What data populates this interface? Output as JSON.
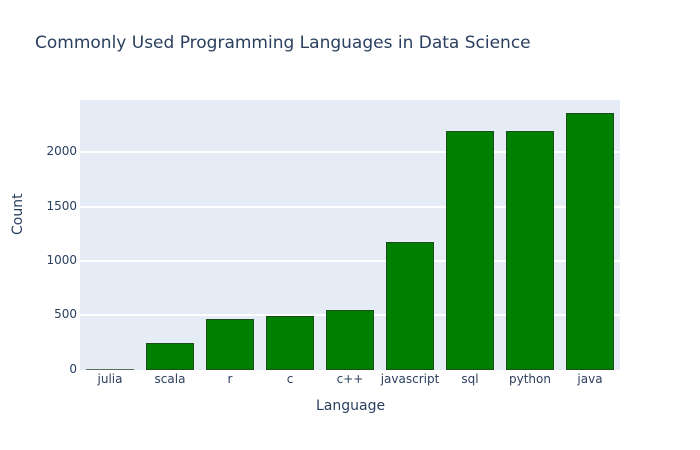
{
  "chart_data": {
    "type": "bar",
    "title": "Commonly Used Programming Languages in Data Science",
    "xlabel": "Language",
    "ylabel": "Count",
    "categories": [
      "julia",
      "scala",
      "r",
      "c",
      "c++",
      "javascript",
      "sql",
      "python",
      "java"
    ],
    "values": [
      8,
      248,
      470,
      495,
      545,
      1175,
      2198,
      2200,
      2360
    ],
    "ylim": [
      0,
      2480
    ],
    "yticks": [
      0,
      500,
      1000,
      1500,
      2000
    ],
    "ytick_labels": [
      "0",
      "500",
      "1000",
      "1500",
      "2000"
    ],
    "grid": true,
    "legend": "none",
    "bar_color": "#008000",
    "bar_edge_color": "#1a4d1a",
    "plot_bg": "#e5ecf6"
  }
}
